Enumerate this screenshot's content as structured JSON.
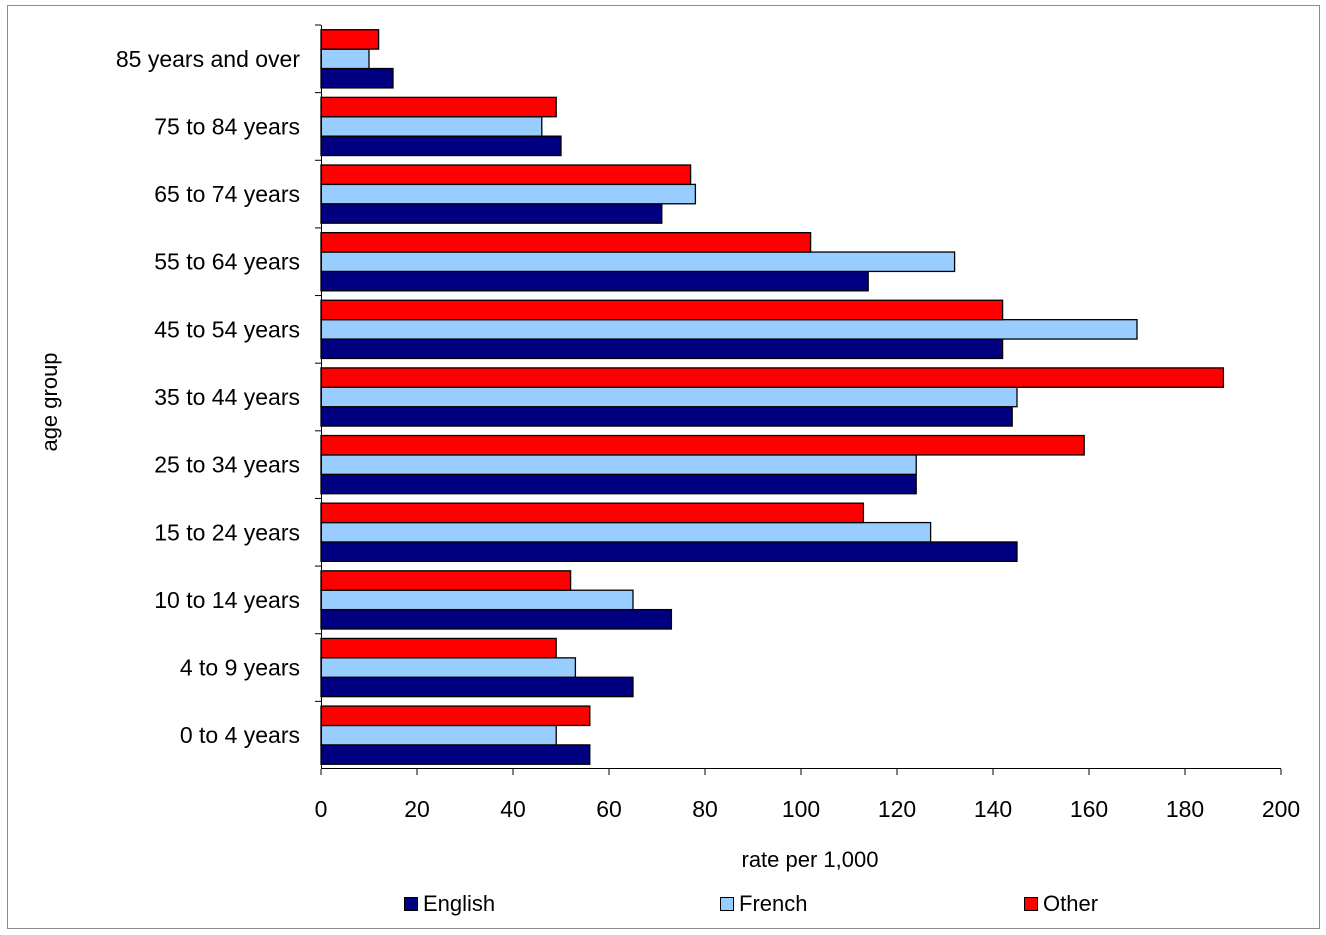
{
  "chart_data": {
    "type": "bar",
    "orientation": "horizontal",
    "categories": [
      "0 to 4 years",
      "4 to 9 years",
      "10 to 14 years",
      "15 to 24 years",
      "25 to 34 years",
      "35 to 44 years",
      "45 to 54 years",
      "55 to 64 years",
      "65 to 74 years",
      "75 to 84 years",
      "85 years and over"
    ],
    "series": [
      {
        "name": "English",
        "color": "#000080",
        "values": [
          56,
          65,
          73,
          145,
          124,
          144,
          142,
          114,
          71,
          50,
          15
        ]
      },
      {
        "name": "French",
        "color": "#99ccff",
        "values": [
          49,
          53,
          65,
          127,
          124,
          145,
          170,
          132,
          78,
          46,
          10
        ]
      },
      {
        "name": "Other",
        "color": "#ff0000",
        "values": [
          56,
          49,
          52,
          113,
          159,
          188,
          142,
          102,
          77,
          49,
          12
        ]
      }
    ],
    "xlabel": "rate per 1,000",
    "ylabel": "age group",
    "xlim": [
      0,
      200
    ],
    "xticks": [
      "0",
      "20",
      "40",
      "60",
      "80",
      "100",
      "120",
      "140",
      "160",
      "180",
      "200"
    ],
    "grid": false,
    "legend_position": "bottom"
  }
}
